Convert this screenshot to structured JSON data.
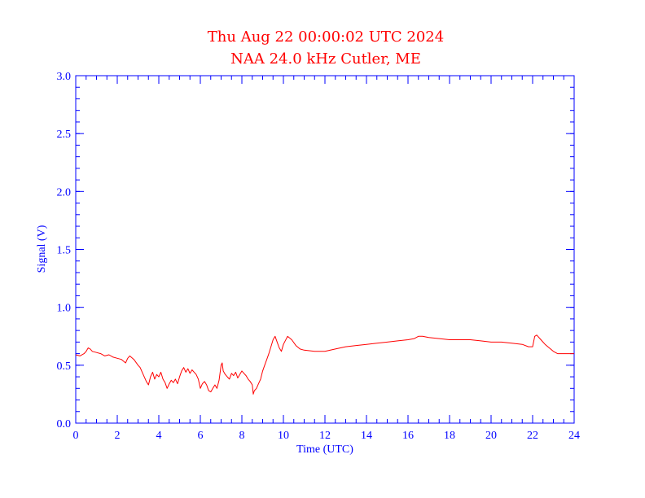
{
  "chart_data": {
    "type": "line",
    "title": "Thu Aug 22 00:00:02 UTC 2024",
    "subtitle": "NAA 24.0 kHz Cutler, ME",
    "xlabel": "Time (UTC)",
    "ylabel": "Signal (V)",
    "xlim": [
      0,
      24
    ],
    "ylim": [
      0,
      3.0
    ],
    "x_ticks": [
      0,
      2,
      4,
      6,
      8,
      10,
      12,
      14,
      16,
      18,
      20,
      22,
      24
    ],
    "x_tick_labels": [
      "0",
      "2",
      "4",
      "6",
      "8",
      "10",
      "12",
      "14",
      "16",
      "18",
      "20",
      "22",
      "24"
    ],
    "y_ticks": [
      0,
      0.5,
      1.0,
      1.5,
      2.0,
      2.5,
      3.0
    ],
    "y_tick_labels": [
      "0.0",
      "0.5",
      "1.0",
      "1.5",
      "2.0",
      "2.5",
      "3.0"
    ],
    "x_minor_step": 0.5,
    "y_minor_step": 0.1,
    "grid": false,
    "series": [
      {
        "color": "#ff0000",
        "x": [
          0,
          0.2,
          0.4,
          0.5,
          0.6,
          0.7,
          0.8,
          1.0,
          1.2,
          1.4,
          1.6,
          1.8,
          2.0,
          2.2,
          2.4,
          2.5,
          2.6,
          2.8,
          3.0,
          3.1,
          3.2,
          3.3,
          3.4,
          3.5,
          3.6,
          3.7,
          3.8,
          3.9,
          4.0,
          4.1,
          4.2,
          4.3,
          4.4,
          4.5,
          4.6,
          4.7,
          4.8,
          4.9,
          5.0,
          5.1,
          5.2,
          5.3,
          5.4,
          5.5,
          5.6,
          5.7,
          5.8,
          5.9,
          6.0,
          6.1,
          6.2,
          6.3,
          6.4,
          6.5,
          6.6,
          6.7,
          6.8,
          6.9,
          7.0,
          7.05,
          7.1,
          7.2,
          7.3,
          7.4,
          7.5,
          7.6,
          7.7,
          7.8,
          7.9,
          8.0,
          8.1,
          8.2,
          8.3,
          8.4,
          8.5,
          8.55,
          8.6,
          8.7,
          8.8,
          8.9,
          9.0,
          9.1,
          9.2,
          9.3,
          9.4,
          9.5,
          9.6,
          9.7,
          9.8,
          9.9,
          10.0,
          10.2,
          10.4,
          10.6,
          10.8,
          11.0,
          11.5,
          12.0,
          12.5,
          13.0,
          13.5,
          14.0,
          14.5,
          15.0,
          15.5,
          16.0,
          16.3,
          16.5,
          16.7,
          17.0,
          17.5,
          18.0,
          18.5,
          19.0,
          19.5,
          20.0,
          20.5,
          21.0,
          21.5,
          21.8,
          22.0,
          22.1,
          22.2,
          22.4,
          22.6,
          22.8,
          23.0,
          23.2,
          23.4,
          23.6,
          23.8,
          24.0
        ],
        "y": [
          0.59,
          0.58,
          0.6,
          0.62,
          0.65,
          0.64,
          0.62,
          0.61,
          0.6,
          0.58,
          0.59,
          0.57,
          0.56,
          0.55,
          0.52,
          0.56,
          0.58,
          0.55,
          0.5,
          0.48,
          0.44,
          0.4,
          0.36,
          0.33,
          0.4,
          0.44,
          0.38,
          0.42,
          0.4,
          0.44,
          0.38,
          0.35,
          0.3,
          0.34,
          0.37,
          0.35,
          0.38,
          0.34,
          0.4,
          0.45,
          0.48,
          0.44,
          0.47,
          0.43,
          0.46,
          0.44,
          0.42,
          0.38,
          0.3,
          0.34,
          0.36,
          0.33,
          0.28,
          0.27,
          0.3,
          0.33,
          0.3,
          0.37,
          0.5,
          0.52,
          0.45,
          0.42,
          0.4,
          0.38,
          0.43,
          0.41,
          0.44,
          0.39,
          0.42,
          0.45,
          0.43,
          0.41,
          0.38,
          0.36,
          0.33,
          0.25,
          0.28,
          0.3,
          0.34,
          0.38,
          0.45,
          0.5,
          0.55,
          0.6,
          0.66,
          0.72,
          0.75,
          0.7,
          0.65,
          0.62,
          0.68,
          0.75,
          0.72,
          0.67,
          0.64,
          0.63,
          0.62,
          0.62,
          0.64,
          0.66,
          0.67,
          0.68,
          0.69,
          0.7,
          0.71,
          0.72,
          0.73,
          0.75,
          0.75,
          0.74,
          0.73,
          0.72,
          0.72,
          0.72,
          0.71,
          0.7,
          0.7,
          0.69,
          0.68,
          0.66,
          0.66,
          0.75,
          0.76,
          0.72,
          0.68,
          0.65,
          0.62,
          0.6,
          0.6,
          0.6,
          0.6,
          0.6
        ]
      }
    ],
    "colors": {
      "title": "#ff0000",
      "axes": "#0000ff",
      "series": "#ff0000",
      "background": "#ffffff"
    }
  }
}
